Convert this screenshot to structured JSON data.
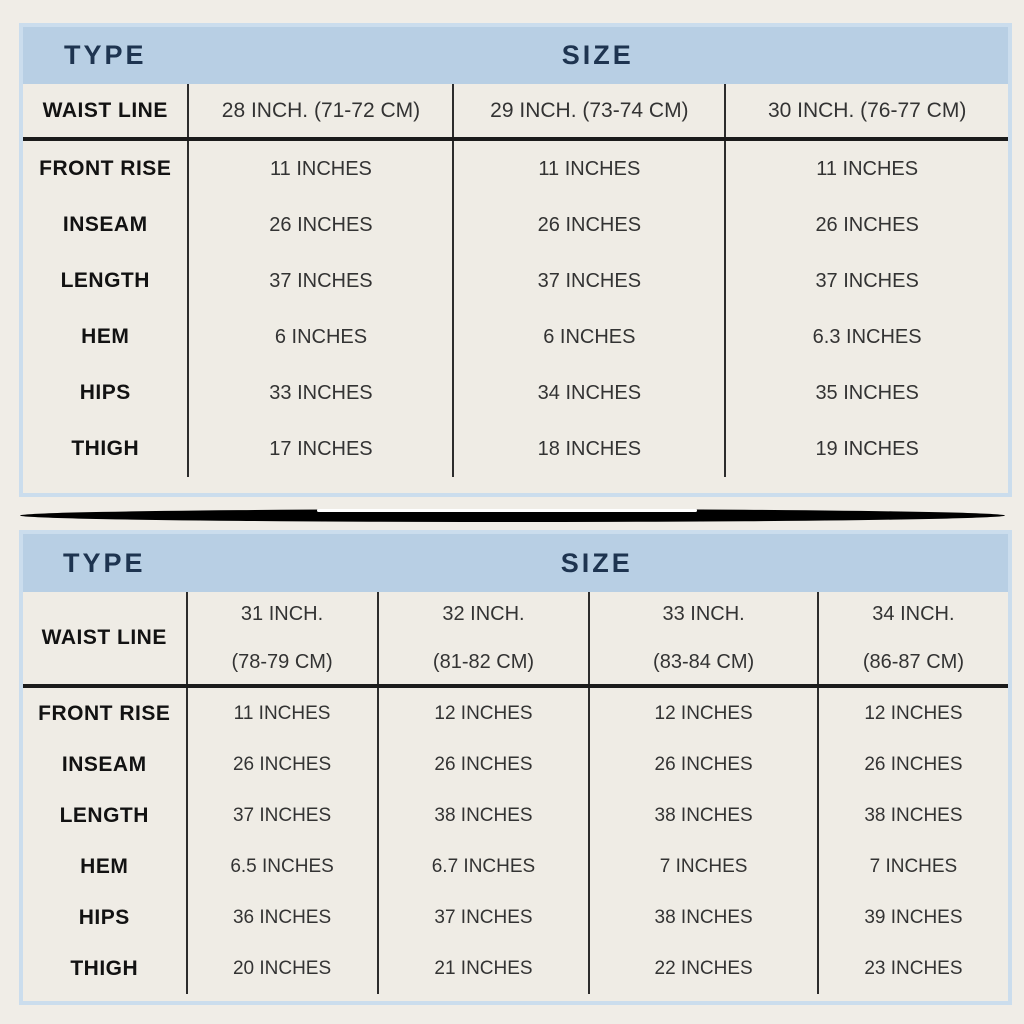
{
  "colors": {
    "page_background": "#f0ede7",
    "table_background": "#efece5",
    "header_background": "#b8cfe4",
    "header_text": "#1e3450",
    "outer_border_blue": "#cbdded",
    "column_line_dark": "#2c2c2c",
    "thick_divider": "#1b1b1b",
    "body_text": "#333333"
  },
  "tables": [
    {
      "header": {
        "type_label": "TYPE",
        "size_label": "SIZE"
      },
      "waist_row": {
        "label": "WAIST LINE",
        "values": [
          [
            "28 INCH. (71-72 CM)"
          ],
          [
            "29 INCH. (73-74 CM)"
          ],
          [
            "30 INCH. (76-77 CM)"
          ]
        ]
      },
      "rows": [
        {
          "label": "FRONT RISE",
          "values": [
            "11 INCHES",
            "11 INCHES",
            "11 INCHES"
          ]
        },
        {
          "label": "INSEAM",
          "values": [
            "26 INCHES",
            "26 INCHES",
            "26 INCHES"
          ]
        },
        {
          "label": "LENGTH",
          "values": [
            "37 INCHES",
            "37 INCHES",
            "37 INCHES"
          ]
        },
        {
          "label": "HEM",
          "values": [
            "6 INCHES",
            "6 INCHES",
            "6.3 INCHES"
          ]
        },
        {
          "label": "HIPS",
          "values": [
            "33 INCHES",
            "34 INCHES",
            "35 INCHES"
          ]
        },
        {
          "label": "THIGH",
          "values": [
            "17 INCHES",
            "18 INCHES",
            "19 INCHES"
          ]
        }
      ]
    },
    {
      "header": {
        "type_label": "TYPE",
        "size_label": "SIZE"
      },
      "waist_row": {
        "label": "WAIST LINE",
        "values": [
          [
            "31 INCH.",
            "(78-79 CM)"
          ],
          [
            "32 INCH.",
            "(81-82 CM)"
          ],
          [
            "33 INCH.",
            "(83-84 CM)"
          ],
          [
            "34 INCH.",
            "(86-87 CM)"
          ]
        ]
      },
      "rows": [
        {
          "label": "FRONT RISE",
          "values": [
            "11 INCHES",
            "12 INCHES",
            "12 INCHES",
            "12 INCHES"
          ]
        },
        {
          "label": "INSEAM",
          "values": [
            "26 INCHES",
            "26 INCHES",
            "26 INCHES",
            "26 INCHES"
          ]
        },
        {
          "label": "LENGTH",
          "values": [
            "37 INCHES",
            "38 INCHES",
            "38 INCHES",
            "38 INCHES"
          ]
        },
        {
          "label": "HEM",
          "values": [
            "6.5 INCHES",
            "6.7 INCHES",
            "7 INCHES",
            "7 INCHES"
          ]
        },
        {
          "label": "HIPS",
          "values": [
            "36 INCHES",
            "37 INCHES",
            "38 INCHES",
            "39 INCHES"
          ]
        },
        {
          "label": "THIGH",
          "values": [
            "20 INCHES",
            "21 INCHES",
            "22 INCHES",
            "23 INCHES"
          ]
        }
      ]
    }
  ]
}
